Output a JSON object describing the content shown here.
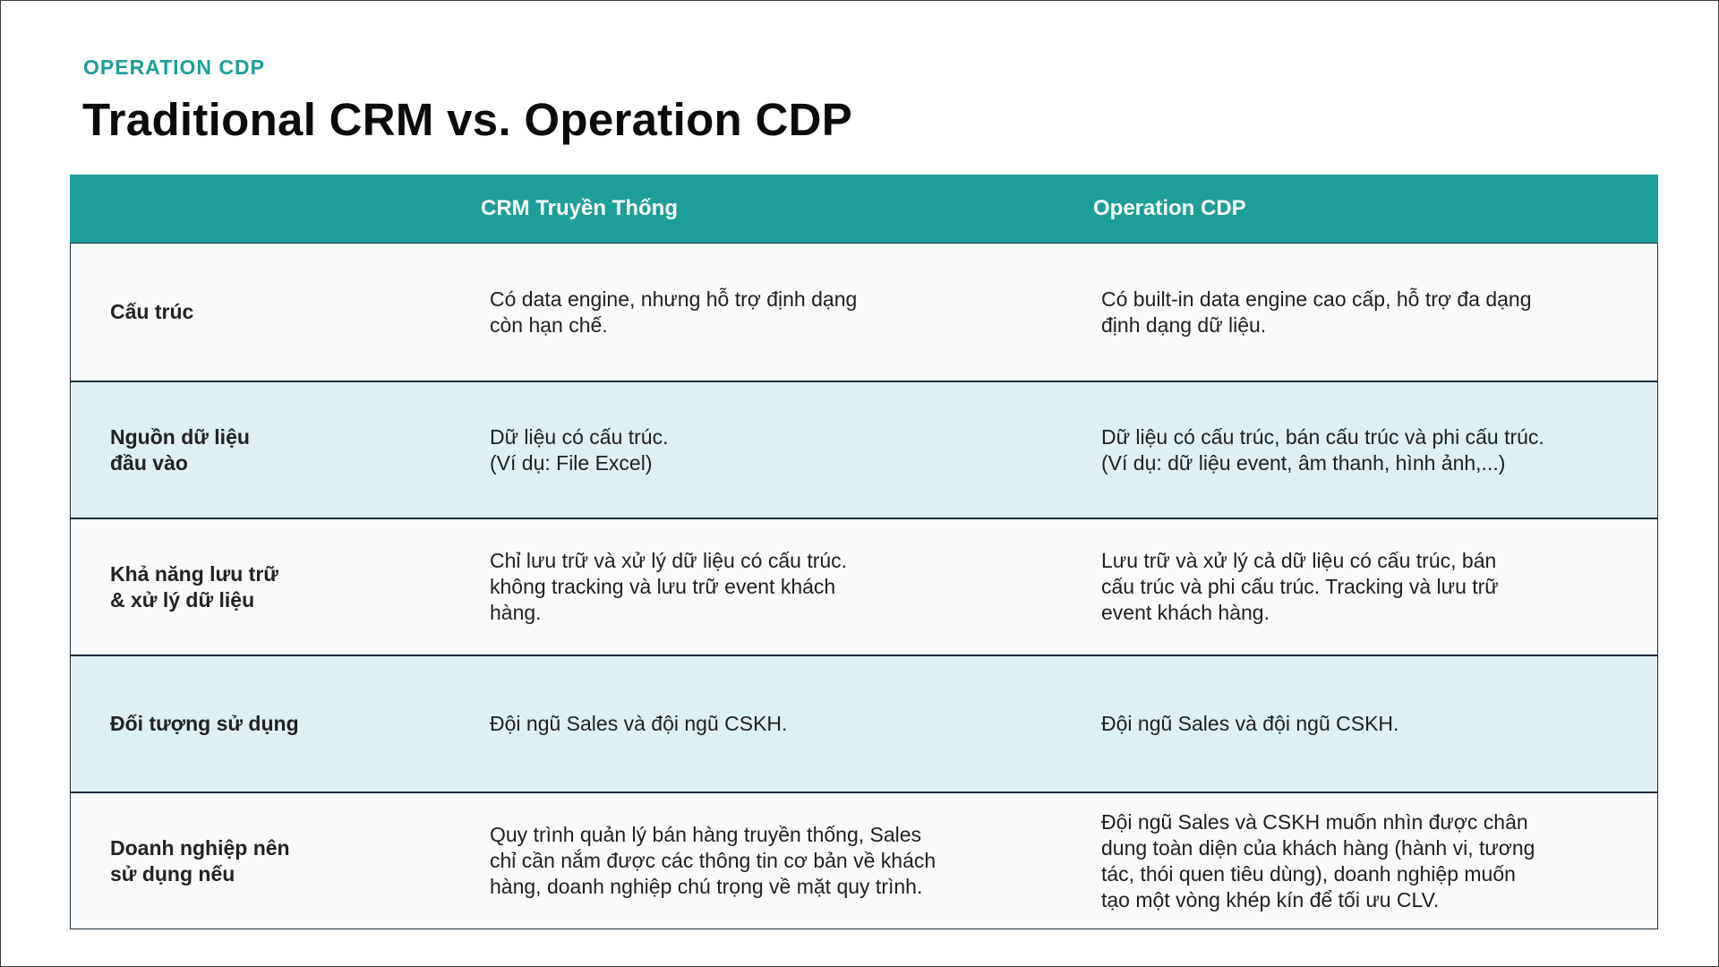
{
  "header": {
    "eyebrow": "OPERATION CDP",
    "title": "Traditional CRM vs. Operation CDP"
  },
  "table": {
    "columns": [
      "",
      "CRM Truyền Thống",
      "Operation CDP"
    ],
    "rows": [
      {
        "label": "Cấu trúc",
        "crm": "Có data engine, nhưng hỗ trợ định dạng\ncòn hạn chế.",
        "cdp": "Có built-in data engine cao cấp, hỗ trợ đa dạng\nđịnh dạng dữ liệu."
      },
      {
        "label": "Nguồn dữ liệu\nđầu vào",
        "crm": "Dữ liệu có cấu trúc.\n(Ví dụ: File Excel)",
        "cdp": "Dữ liệu có cấu trúc, bán cấu trúc và phi cấu trúc.\n(Ví dụ: dữ liệu event, âm thanh, hình ảnh,...)"
      },
      {
        "label": "Khả năng lưu trữ\n& xử lý dữ liệu",
        "crm": "Chỉ lưu trữ và xử lý dữ liệu có cấu trúc.\nkhông tracking và lưu trữ event khách\nhàng.",
        "cdp": "Lưu trữ và xử lý cả dữ liệu có cấu trúc, bán\ncấu trúc và phi cấu trúc. Tracking và lưu trữ\nevent khách hàng."
      },
      {
        "label": "Đối tượng sử dụng",
        "crm": "Đội ngũ Sales và đội ngũ CSKH.",
        "cdp": "Đội ngũ Sales và đội ngũ CSKH."
      },
      {
        "label": "Doanh nghiệp nên\nsử dụng nếu",
        "crm": "Quy trình quản lý bán hàng truyền thống, Sales\nchỉ cần nắm được các thông tin cơ bản về khách\nhàng, doanh nghiệp chú trọng về mặt quy trình.",
        "cdp": "Đội ngũ Sales và CSKH muốn nhìn được chân\ndung toàn diện của khách hàng (hành vi, tương\ntác, thói quen tiêu dùng), doanh nghiệp muốn\ntạo một vòng khép kín để tối ưu CLV."
      }
    ]
  }
}
